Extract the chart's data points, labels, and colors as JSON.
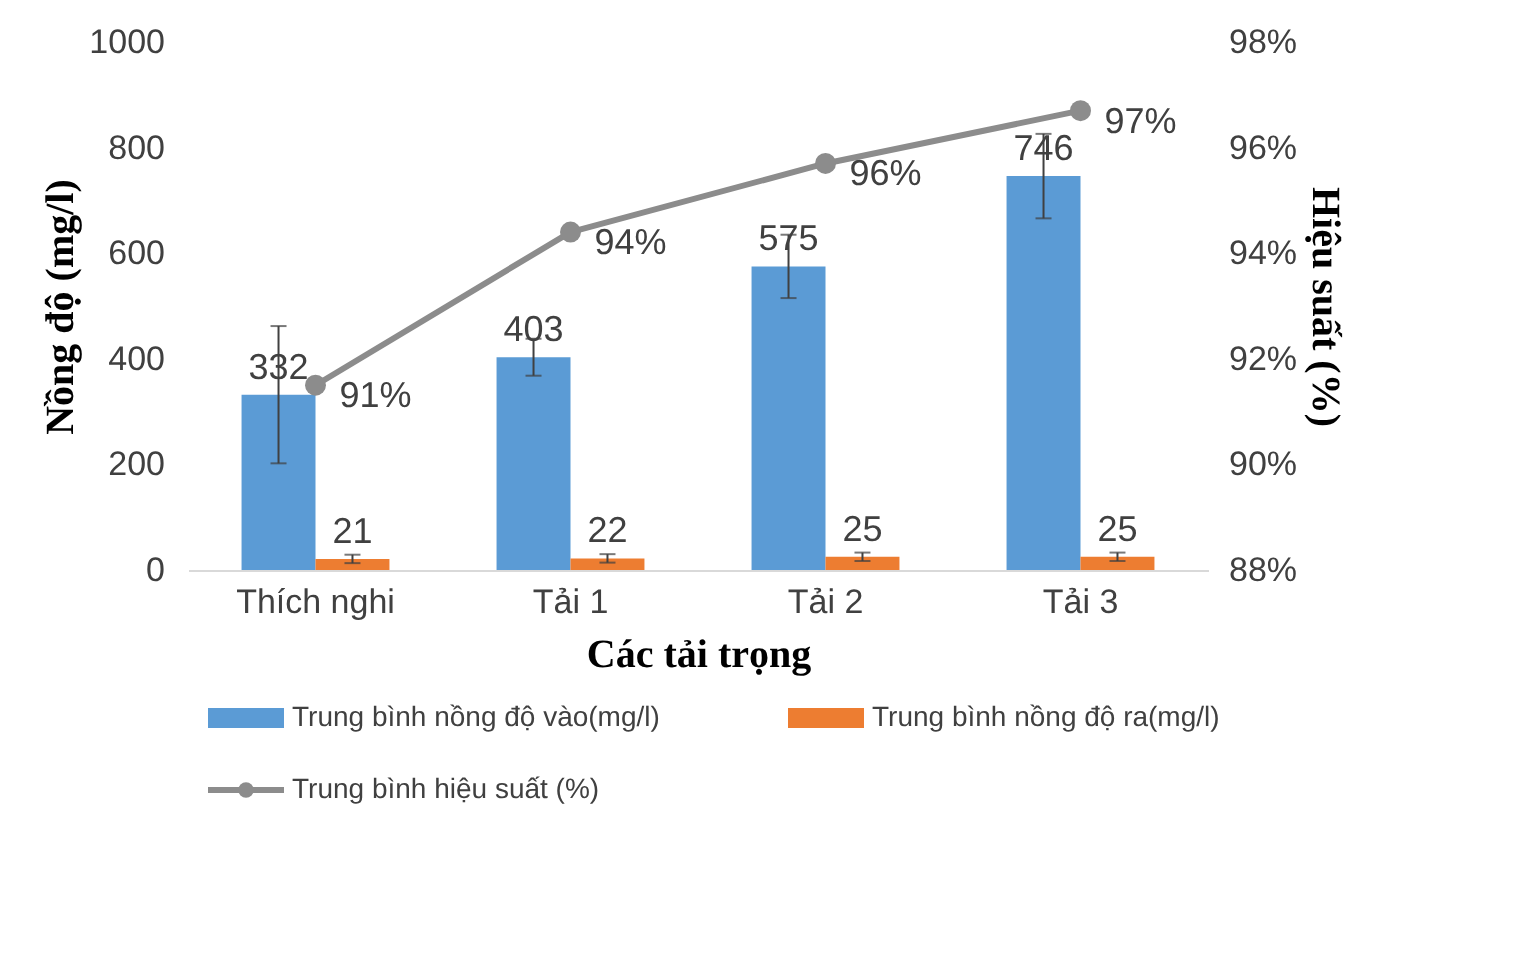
{
  "chart_data": {
    "type": "bar",
    "xlabel": "Các tải trọng",
    "ylabel": "Nồng độ (mg/l)",
    "y2label": "Hiệu suất (%)",
    "categories": [
      "Thích nghi",
      "Tải 1",
      "Tải 2",
      "Tải 3"
    ],
    "series": [
      {
        "name": "Trung bình nồng độ vào(mg/l)",
        "color": "#5b9bd5",
        "values": [
          332,
          403,
          575,
          746
        ],
        "errors": [
          130,
          35,
          60,
          80
        ],
        "value_labels": [
          "332",
          "403",
          "575",
          "746"
        ]
      },
      {
        "name": "Trung bình nồng độ ra(mg/l)",
        "color": "#ed7d31",
        "values": [
          21,
          22,
          25,
          25
        ],
        "errors": [
          8,
          8,
          8,
          8
        ],
        "value_labels": [
          "21",
          "22",
          "25",
          "25"
        ]
      },
      {
        "name": "Trung bình hiệu suất (%)",
        "type": "line",
        "line_style": "solid",
        "axis": "y2",
        "color": "#8c8c8c",
        "marker": "circle",
        "values": [
          91.5,
          94.4,
          95.7,
          96.7
        ],
        "value_labels": [
          "91%",
          "94%",
          "96%",
          "97%"
        ]
      }
    ],
    "ylim": [
      0,
      1000
    ],
    "yticks": [
      0,
      200,
      400,
      600,
      800,
      1000
    ],
    "y2lim": [
      88,
      98
    ],
    "y2ticks": [
      {
        "value": 88,
        "label": "88%"
      },
      {
        "value": 90,
        "label": "90%"
      },
      {
        "value": 92,
        "label": "92%"
      },
      {
        "value": 94,
        "label": "94%"
      },
      {
        "value": 96,
        "label": "96%"
      },
      {
        "value": 98,
        "label": "98%"
      }
    ],
    "grid": false,
    "legend": "bottom"
  }
}
